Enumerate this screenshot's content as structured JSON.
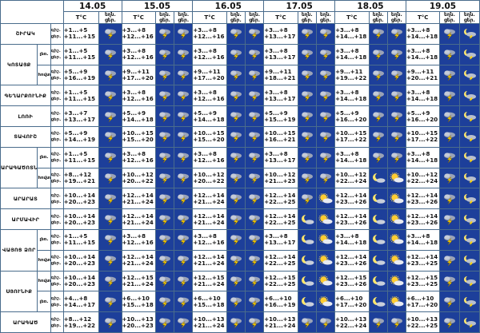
{
  "header": {
    "dates": [
      "14.05",
      "15.05",
      "16.05",
      "17.05",
      "18.05",
      "19.05"
    ],
    "temp_unit": "T°C",
    "weather_label_top": "եղն.",
    "weather_label_bottom": "ցեր."
  },
  "row_labels": {
    "night": "գիշ.",
    "day": "ցեր."
  },
  "regions": [
    {
      "name": "ՇԻՐԱԿ",
      "rows": [
        {
          "sub": "",
          "lines": [
            [
              "+1...+5",
              "+11...+15"
            ],
            [
              "+3...+8",
              "+12...+16"
            ],
            [
              "+3...+8",
              "+12...+16"
            ],
            [
              "+3...+8",
              "+13...+17"
            ],
            [
              "+3...+8",
              "+14...+18"
            ],
            [
              "+3...+8",
              "+14...+18"
            ]
          ],
          "icons": [
            [
              "storm"
            ],
            [
              "storm",
              "storm"
            ],
            [
              "storm",
              "storm"
            ],
            [
              "storm",
              "storm"
            ],
            [
              "storm",
              "storm"
            ],
            [
              "storm",
              "moon-storm"
            ]
          ]
        }
      ]
    },
    {
      "name": "ԿՈՏԱՅՔ",
      "rows": [
        {
          "sub": "լեռ.",
          "lines": [
            [
              "+1...+5",
              "+11...+15"
            ],
            [
              "+3...+8",
              "+12...+16"
            ],
            [
              "+3...+8",
              "+12...+16"
            ],
            [
              "+3...+8",
              "+13...+17"
            ],
            [
              "+3...+8",
              "+14...+18"
            ],
            [
              "+3...+8",
              "+14...+18"
            ]
          ],
          "icons": [
            [
              "storm"
            ],
            [
              "storm",
              "storm"
            ],
            [
              "storm",
              "storm"
            ],
            [
              "storm",
              "storm"
            ],
            [
              "storm",
              "storm"
            ],
            [
              "storm",
              "moon-storm"
            ]
          ]
        },
        {
          "sub": "հովտ.",
          "lines": [
            [
              "+5...+9",
              "+16...+19"
            ],
            [
              "+9...+11",
              "+17...+20"
            ],
            [
              "+9...+11",
              "+17...+20"
            ],
            [
              "+9...+11",
              "+18...+21"
            ],
            [
              "+9...+11",
              "+19...+22"
            ],
            [
              "+9...+11",
              "+20...+21"
            ]
          ],
          "icons": [
            [
              "storm"
            ],
            [
              "storm",
              "storm"
            ],
            [
              "storm",
              "storm"
            ],
            [
              "storm",
              "storm"
            ],
            [
              "storm",
              "storm"
            ],
            [
              "storm",
              "moon-storm"
            ]
          ]
        }
      ]
    },
    {
      "name": "ԳԵՂԱՐՔՈՒՆԻՔ",
      "rows": [
        {
          "sub": "",
          "lines": [
            [
              "+1...+5",
              "+11...+15"
            ],
            [
              "+3...+8",
              "+12...+16"
            ],
            [
              "+3...+8",
              "+12...+16"
            ],
            [
              "+3...+8",
              "+13...+17"
            ],
            [
              "+3...+8",
              "+14...+18"
            ],
            [
              "+3...+8",
              "+14...+18"
            ]
          ],
          "icons": [
            [
              "storm"
            ],
            [
              "storm",
              "storm"
            ],
            [
              "storm",
              "storm"
            ],
            [
              "storm",
              "storm"
            ],
            [
              "storm",
              "storm"
            ],
            [
              "storm",
              "moon-storm"
            ]
          ]
        }
      ]
    },
    {
      "name": "ԼՈՌԻ",
      "rows": [
        {
          "sub": "",
          "lines": [
            [
              "+3...+7",
              "+13...+17"
            ],
            [
              "+5...+9",
              "+14...+18"
            ],
            [
              "+5...+9",
              "+14...+18"
            ],
            [
              "+5...+9",
              "+15...+19"
            ],
            [
              "+5...+9",
              "+16...+20"
            ],
            [
              "+5...+9",
              "+16...+20"
            ]
          ],
          "icons": [
            [
              "storm"
            ],
            [
              "storm",
              "storm"
            ],
            [
              "storm",
              "storm"
            ],
            [
              "storm",
              "storm"
            ],
            [
              "storm",
              "storm"
            ],
            [
              "storm",
              "moon-storm"
            ]
          ]
        }
      ]
    },
    {
      "name": "ՏԱՎՈՒՇ",
      "rows": [
        {
          "sub": "",
          "lines": [
            [
              "+5...+9",
              "+14...+19"
            ],
            [
              "+10...+15",
              "+15...+20"
            ],
            [
              "+10...+15",
              "+15...+20"
            ],
            [
              "+10...+15",
              "+16...+21"
            ],
            [
              "+10...+15",
              "+17...+22"
            ],
            [
              "+10...+15",
              "+17...+22"
            ]
          ],
          "icons": [
            [
              "storm"
            ],
            [
              "storm",
              "storm"
            ],
            [
              "storm",
              "storm"
            ],
            [
              "storm",
              "storm"
            ],
            [
              "storm",
              "storm"
            ],
            [
              "storm",
              "moon-storm"
            ]
          ]
        }
      ]
    },
    {
      "name": "ԱՐԱԳԱԾՈՏՆ",
      "rows": [
        {
          "sub": "լեռ.",
          "lines": [
            [
              "+1...+5",
              "+11...+15"
            ],
            [
              "+3...+8",
              "+12...+16"
            ],
            [
              "+3...+8",
              "+12...+16"
            ],
            [
              "+3...+8",
              "+13...+17"
            ],
            [
              "+3...+8",
              "+14...+18"
            ],
            [
              "+3...+8",
              "+14...+18"
            ]
          ],
          "icons": [
            [
              "storm"
            ],
            [
              "storm",
              "storm"
            ],
            [
              "storm",
              "storm"
            ],
            [
              "storm",
              "storm"
            ],
            [
              "storm",
              "storm"
            ],
            [
              "storm",
              "moon-storm"
            ]
          ]
        },
        {
          "sub": "հովտ.",
          "lines": [
            [
              "+8...+12",
              "+19...+21"
            ],
            [
              "+10...+12",
              "+20...+22"
            ],
            [
              "+10...+12",
              "+20...+22"
            ],
            [
              "+10...+12",
              "+21...+23"
            ],
            [
              "+10...+12",
              "+22...+24"
            ],
            [
              "+10...+12",
              "+22...+24"
            ]
          ],
          "icons": [
            [
              "storm"
            ],
            [
              "storm",
              "storm"
            ],
            [
              "storm",
              "storm"
            ],
            [
              "storm",
              "storm"
            ],
            [
              "moon-cloud",
              "sun-cloud"
            ],
            [
              "storm",
              "moon-storm"
            ]
          ]
        }
      ]
    },
    {
      "name": "ԱՐԱՐԱՏ",
      "rows": [
        {
          "sub": "",
          "lines": [
            [
              "+10...+14",
              "+20...+23"
            ],
            [
              "+12...+14",
              "+21...+24"
            ],
            [
              "+12...+14",
              "+21...+24"
            ],
            [
              "+12...+14",
              "+22...+25"
            ],
            [
              "+12...+14",
              "+23...+26"
            ],
            [
              "+12...+14",
              "+23...+26"
            ]
          ],
          "icons": [
            [
              "storm"
            ],
            [
              "storm",
              "storm"
            ],
            [
              "storm",
              "storm"
            ],
            [
              "storm",
              "sun-cloud"
            ],
            [
              "moon-cloud",
              "sun-cloud"
            ],
            [
              "storm",
              "moon-storm"
            ]
          ]
        }
      ]
    },
    {
      "name": "ԱՐՄԱՎԻՐ",
      "rows": [
        {
          "sub": "",
          "lines": [
            [
              "+10...+14",
              "+20...+23"
            ],
            [
              "+12...+14",
              "+21...+24"
            ],
            [
              "+12...+14",
              "+21...+24"
            ],
            [
              "+12...+14",
              "+22...+25"
            ],
            [
              "+12...+14",
              "+23...+26"
            ],
            [
              "+12...+14",
              "+23...+26"
            ]
          ],
          "icons": [
            [
              "storm"
            ],
            [
              "storm",
              "storm"
            ],
            [
              "storm",
              "storm"
            ],
            [
              "moon-cloud",
              "sun-cloud"
            ],
            [
              "moon-cloud",
              "sun-cloud"
            ],
            [
              "storm",
              "moon-storm"
            ]
          ]
        }
      ]
    },
    {
      "name": "ՎԱՅՈՑ ՁՈՐ",
      "rows": [
        {
          "sub": "լեռ.",
          "lines": [
            [
              "+1...+5",
              "+11...+15"
            ],
            [
              "+3...+8",
              "+12...+16"
            ],
            [
              "+3...+8",
              "+12...+16"
            ],
            [
              "+3...+8",
              "+13...+17"
            ],
            [
              "+3...+8",
              "+14...+18"
            ],
            [
              "+3...+8",
              "+14...+18"
            ]
          ],
          "icons": [
            [
              "storm"
            ],
            [
              "storm",
              "storm"
            ],
            [
              "storm",
              "storm"
            ],
            [
              "moon-cloud",
              "sun-cloud"
            ],
            [
              "moon-cloud",
              "sun-cloud"
            ],
            [
              "storm",
              "moon-storm"
            ]
          ]
        },
        {
          "sub": "հովտ.",
          "lines": [
            [
              "+10...+14",
              "+20...+23"
            ],
            [
              "+12...+14",
              "+21...+24"
            ],
            [
              "+12...+14",
              "+21...+24"
            ],
            [
              "+12...+14",
              "+22...+25"
            ],
            [
              "+12...+14",
              "+23...+26"
            ],
            [
              "+12...+14",
              "+23...+25"
            ]
          ],
          "icons": [
            [
              "storm"
            ],
            [
              "storm",
              "storm"
            ],
            [
              "storm",
              "storm"
            ],
            [
              "moon-cloud",
              "sun-cloud"
            ],
            [
              "moon-cloud",
              "sun-cloud"
            ],
            [
              "storm",
              "moon-storm"
            ]
          ]
        }
      ]
    },
    {
      "name": "ՍՅՈՒՆԻՔ",
      "rows": [
        {
          "sub": "հովտ.",
          "lines": [
            [
              "+10...+14",
              "+20...+23"
            ],
            [
              "+12...+15",
              "+21...+24"
            ],
            [
              "+12...+15",
              "+21...+24"
            ],
            [
              "+12...+15",
              "+22...+25"
            ],
            [
              "+12...+15",
              "+23...+26"
            ],
            [
              "+12...+15",
              "+23...+25"
            ]
          ],
          "icons": [
            [
              "storm"
            ],
            [
              "storm",
              "storm"
            ],
            [
              "storm",
              "storm"
            ],
            [
              "moon-cloud",
              "sun-cloud"
            ],
            [
              "moon-cloud",
              "sun-cloud"
            ],
            [
              "storm",
              "moon-storm"
            ]
          ]
        },
        {
          "sub": "լեռ.",
          "lines": [
            [
              "+4...+8",
              "+14...+17"
            ],
            [
              "+6...+10",
              "+15...+18"
            ],
            [
              "+6...+10",
              "+15...+18"
            ],
            [
              "+6...+10",
              "+16...+19"
            ],
            [
              "+6...+10",
              "+17...+20"
            ],
            [
              "+6...+10",
              "+17...+20"
            ]
          ],
          "icons": [
            [
              "storm"
            ],
            [
              "storm",
              "storm"
            ],
            [
              "storm",
              "storm"
            ],
            [
              "moon-cloud",
              "sun-cloud"
            ],
            [
              "moon-cloud",
              "sun-cloud"
            ],
            [
              "storm",
              "moon-storm"
            ]
          ]
        }
      ]
    },
    {
      "name": "ԱՐԱԳԱԾ",
      "rows": [
        {
          "sub": "",
          "lines": [
            [
              "+8...+12",
              "+19...+22"
            ],
            [
              "+10...+13",
              "+20...+23"
            ],
            [
              "+10...+13",
              "+21...+24"
            ],
            [
              "+10...+13",
              "+21...+24"
            ],
            [
              "+10...+13",
              "+22...+24"
            ],
            [
              "+10...+13",
              "+22...+25"
            ]
          ],
          "icons": [
            [
              "storm"
            ],
            [
              "storm",
              "storm"
            ],
            [
              "storm",
              "storm"
            ],
            [
              "storm",
              "storm"
            ],
            [
              "storm",
              "storm"
            ],
            [
              "storm",
              "moon-storm"
            ]
          ]
        }
      ]
    }
  ],
  "colors": {
    "icon_bg": "#1d3f9a",
    "grid_line": "#4a6c8c"
  }
}
